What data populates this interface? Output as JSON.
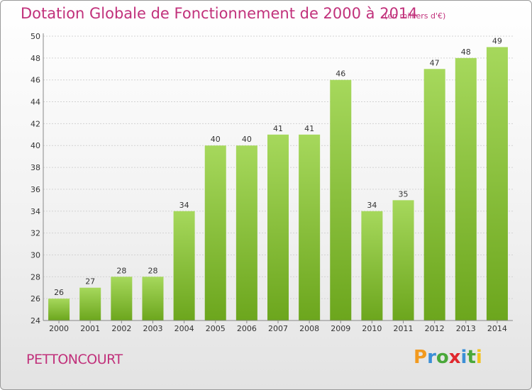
{
  "header": {
    "title": "Dotation Globale de Fonctionnement de 2000 à 2014",
    "subtitle": "(en milliers d'€)"
  },
  "footer": {
    "city": "PETTONCOURT",
    "logo_text": "Proxiti",
    "logo_letters": [
      {
        "ch": "P",
        "color": "#f29a1f"
      },
      {
        "ch": "r",
        "color": "#3c8fd6"
      },
      {
        "ch": "o",
        "color": "#4aa83a"
      },
      {
        "ch": "x",
        "color": "#e0282e"
      },
      {
        "ch": "i",
        "color": "#3c8fd6"
      },
      {
        "ch": "t",
        "color": "#4aa83a"
      },
      {
        "ch": "i",
        "color": "#f2c21f"
      }
    ]
  },
  "colors": {
    "accent": "#c1317b",
    "bar_light": "#a6d85c",
    "bar_dark": "#6ca61d",
    "grid": "#d2d2d2",
    "axis": "#888888"
  },
  "chart_data": {
    "type": "bar",
    "title": "Dotation Globale de Fonctionnement de 2000 à 2014",
    "subtitle": "(en milliers d'€)",
    "categories": [
      "2000",
      "2001",
      "2002",
      "2003",
      "2004",
      "2005",
      "2006",
      "2007",
      "2008",
      "2009",
      "2010",
      "2011",
      "2012",
      "2013",
      "2014"
    ],
    "values": [
      26,
      27,
      28,
      28,
      34,
      40,
      40,
      41,
      41,
      46,
      34,
      35,
      47,
      48,
      49
    ],
    "ylim": [
      24,
      50
    ],
    "yticks": [
      24,
      26,
      28,
      30,
      32,
      34,
      36,
      38,
      40,
      42,
      44,
      46,
      48,
      50
    ],
    "xlabel": "",
    "ylabel": "",
    "grid": true,
    "legend": "none"
  }
}
